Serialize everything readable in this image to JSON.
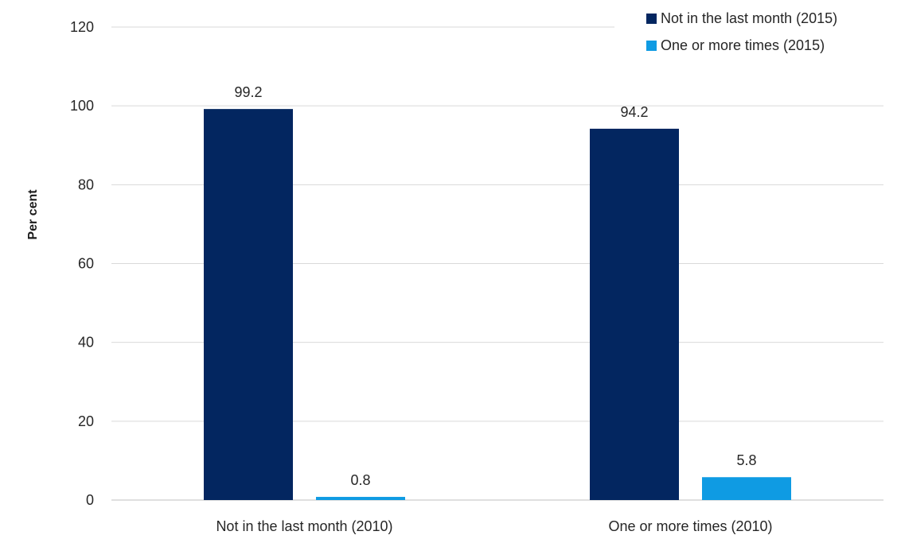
{
  "chart_data": {
    "type": "bar",
    "categories": [
      "Not in the last month (2010)",
      "One or more times (2010)"
    ],
    "series": [
      {
        "name": "Not in the last month (2015)",
        "values": [
          99.2,
          94.2
        ],
        "color": "#032660"
      },
      {
        "name": "One or more times (2015)",
        "values": [
          0.8,
          5.8
        ],
        "color": "#0f9be3"
      }
    ],
    "data_labels": [
      [
        "99.2",
        "94.2"
      ],
      [
        "0.8",
        "5.8"
      ]
    ],
    "title": "",
    "xlabel": "",
    "ylabel": "Per cent",
    "ylim": [
      0,
      120
    ],
    "yticks": [
      0,
      20,
      40,
      60,
      80,
      100,
      120
    ],
    "grid": true,
    "legend_position": "top-right"
  }
}
